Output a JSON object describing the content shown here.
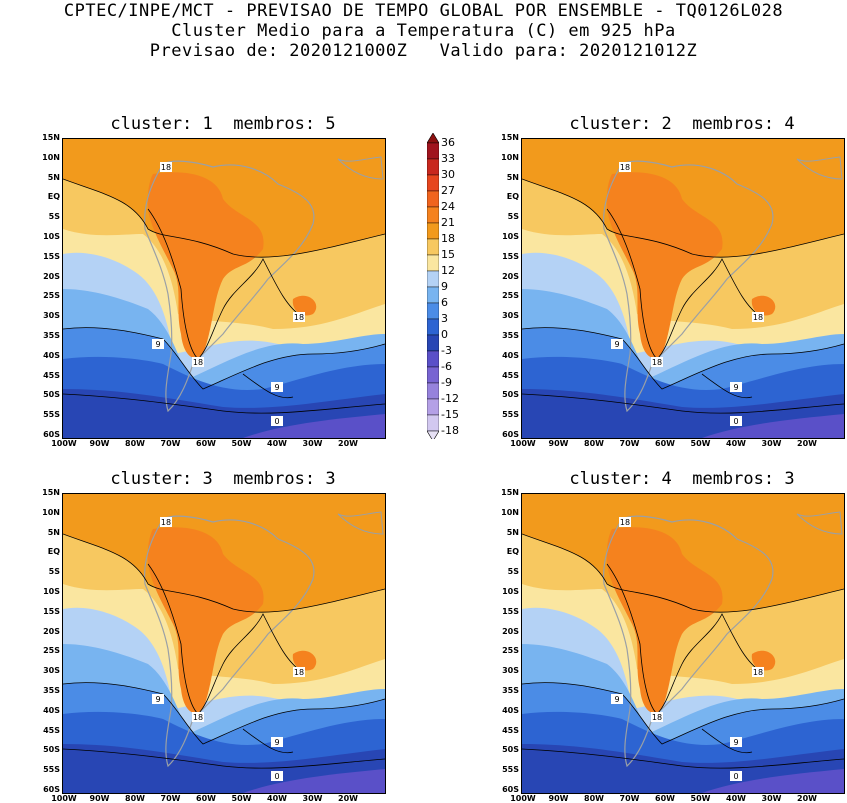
{
  "header": {
    "line1": "CPTEC/INPE/MCT - PREVISAO DE TEMPO GLOBAL POR ENSEMBLE - TQ0126L028",
    "line2": "Cluster Medio para a Temperatura (C) em 925 hPa",
    "line3": "Previsao de: 2020121000Z   Valido para: 2020121012Z"
  },
  "panels": [
    {
      "title": "cluster: 1  membros: 5",
      "contours": [
        "18",
        "18",
        "18",
        "9",
        "9",
        "0"
      ]
    },
    {
      "title": "cluster: 2  membros: 4",
      "contours": [
        "18",
        "18",
        "18",
        "9",
        "9",
        "0"
      ]
    },
    {
      "title": "cluster: 3  membros: 3",
      "contours": [
        "18",
        "18",
        "18",
        "9",
        "9",
        "0"
      ]
    },
    {
      "title": "cluster: 4  membros: 3",
      "contours": [
        "18",
        "18",
        "18",
        "9",
        "9",
        "0"
      ]
    }
  ],
  "latitude_labels": [
    "15N",
    "10N",
    "5N",
    "EQ",
    "5S",
    "10S",
    "15S",
    "20S",
    "25S",
    "30S",
    "35S",
    "40S",
    "45S",
    "50S",
    "55S",
    "60S"
  ],
  "longitude_labels": [
    "100W",
    "90W",
    "80W",
    "70W",
    "60W",
    "50W",
    "40W",
    "30W",
    "20W"
  ],
  "colorbar": {
    "labels": [
      "36",
      "33",
      "30",
      "27",
      "24",
      "21",
      "18",
      "15",
      "12",
      "9",
      "6",
      "3",
      "0",
      "-3",
      "-6",
      "-9",
      "-12",
      "-15",
      "-18"
    ],
    "colors": [
      "#a0141e",
      "#c8281e",
      "#e6461e",
      "#f0641e",
      "#f5821e",
      "#f29a1c",
      "#f7c860",
      "#fae6a0",
      "#b4d2f5",
      "#78b4f0",
      "#4b8ce6",
      "#2d64d2",
      "#2846b4",
      "#5a50c8",
      "#7864d2",
      "#9682dc",
      "#b4a0e6",
      "#d2c8f0"
    ]
  }
}
